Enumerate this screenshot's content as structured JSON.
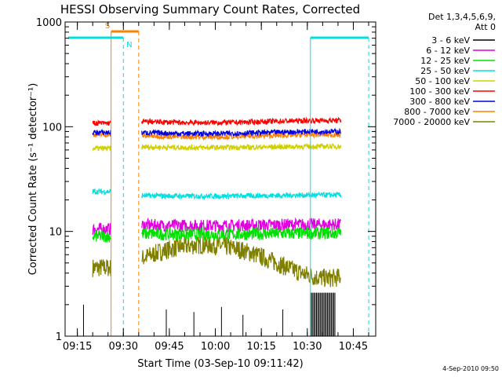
{
  "chart_data": {
    "type": "line",
    "title": "HESSI Observing Summary Count Rates, Corrected",
    "xlabel": "Start Time (03-Sep-10 09:11:42)",
    "ylabel": "Corrected Count Rate (s⁻¹ detector⁻¹)",
    "yscale": "log",
    "ylim": [
      1,
      1000
    ],
    "xlim_minutes": [
      "09:11",
      "10:52"
    ],
    "x_ticks": [
      "09:15",
      "09:30",
      "09:45",
      "10:00",
      "10:15",
      "10:30",
      "10:45"
    ],
    "y_ticks": [
      "1",
      "10",
      "100",
      "1000"
    ],
    "legend_placement": "right",
    "legend_header": [
      "Det 1,3,4,5,6,9,",
      "Att 0"
    ],
    "footer_stamp": "4-Sep-2010 09:50",
    "flags": {
      "saa_label": "S",
      "night_label": "N"
    },
    "data_gap": [
      "09:26",
      "09:36"
    ],
    "series": [
      {
        "name": "3 - 6 keV",
        "color": "#000000",
        "before": null,
        "after": null
      },
      {
        "name": "6 - 12 keV",
        "color": "#e000e0",
        "before": 10.5,
        "after": 11.5
      },
      {
        "name": "12 - 25 keV",
        "color": "#00e000",
        "before": 9.0,
        "after": 9.5
      },
      {
        "name": "25 - 50 keV",
        "color": "#00e0e0",
        "before": 24,
        "after": 22
      },
      {
        "name": "50 - 100 keV",
        "color": "#d0d000",
        "before": 62,
        "after": 64
      },
      {
        "name": "100 - 300 keV",
        "color": "#ff0000",
        "before": 108,
        "after": 112
      },
      {
        "name": "300 - 800 keV",
        "color": "#0000e0",
        "before": 88,
        "after": 88
      },
      {
        "name": "800 - 7000 keV",
        "color": "#ff8000",
        "before": 84,
        "after": 82
      },
      {
        "name": "7000 - 20000 keV",
        "color": "#808000",
        "before": 4.5,
        "after": 5.5
      }
    ]
  }
}
